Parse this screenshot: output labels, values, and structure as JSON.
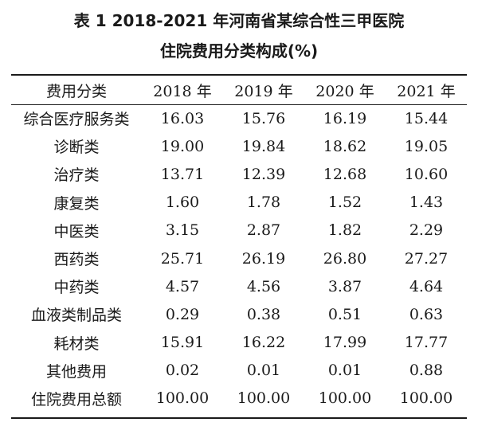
{
  "caption": {
    "line1": "表 1  2018-2021 年河南省某综合性三甲医院",
    "line2": "住院费用分类构成(%)"
  },
  "table": {
    "headers": [
      "费用分类",
      "2018 年",
      "2019 年",
      "2020 年",
      "2021 年"
    ],
    "rows": [
      [
        "综合医疗服务类",
        "16.03",
        "15.76",
        "16.19",
        "15.44"
      ],
      [
        "诊断类",
        "19.00",
        "19.84",
        "18.62",
        "19.05"
      ],
      [
        "治疗类",
        "13.71",
        "12.39",
        "12.68",
        "10.60"
      ],
      [
        "康复类",
        "1.60",
        "1.78",
        "1.52",
        "1.43"
      ],
      [
        "中医类",
        "3.15",
        "2.87",
        "1.82",
        "2.29"
      ],
      [
        "西药类",
        "25.71",
        "26.19",
        "26.80",
        "27.27"
      ],
      [
        "中药类",
        "4.57",
        "4.56",
        "3.87",
        "4.64"
      ],
      [
        "血液类制品类",
        "0.29",
        "0.38",
        "0.51",
        "0.63"
      ],
      [
        "耗材类",
        "15.91",
        "16.22",
        "17.99",
        "17.77"
      ],
      [
        "其他费用",
        "0.02",
        "0.01",
        "0.01",
        "0.88"
      ],
      [
        "住院费用总额",
        "100.00",
        "100.00",
        "100.00",
        "100.00"
      ]
    ]
  }
}
